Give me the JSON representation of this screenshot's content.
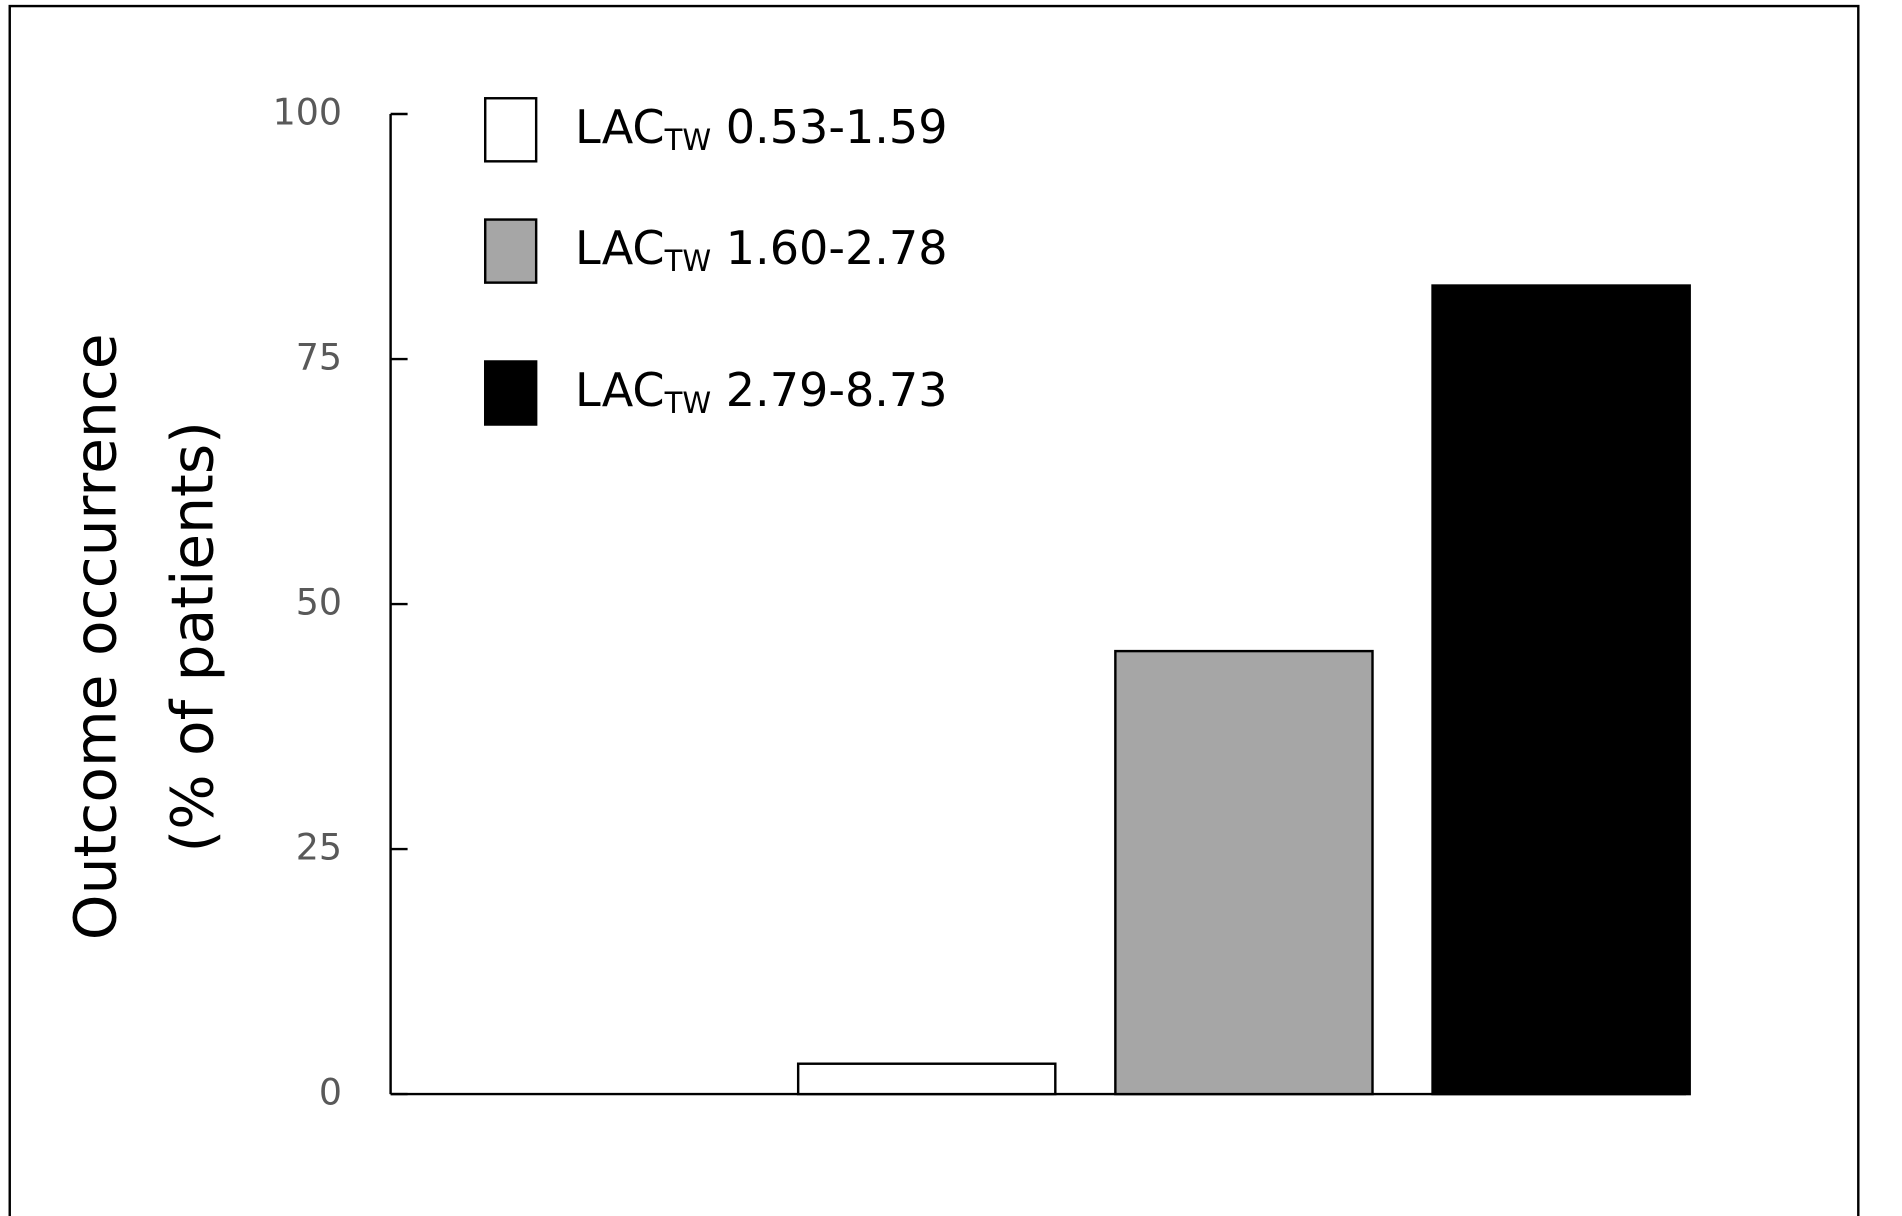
{
  "chart_data": {
    "type": "bar",
    "y_label_lines": [
      "Outcome occurrence",
      "(% of patients)"
    ],
    "categories": [
      null,
      null,
      null,
      null
    ],
    "series": [
      {
        "name": "LAC",
        "subscript": "TW",
        "range": "0.53-1.59",
        "color": "#ffffff",
        "values": [
          null,
          3.1,
          null,
          null
        ]
      },
      {
        "name": "LAC",
        "subscript": "TW",
        "range": "1.60-2.78",
        "color": "#a6a6a6",
        "values": [
          null,
          null,
          45.2,
          null
        ]
      },
      {
        "name": "LAC",
        "subscript": "TW",
        "range": "2.79-8.73",
        "color": "#000000",
        "values": [
          null,
          null,
          null,
          82.5
        ]
      }
    ],
    "ylim": [
      0,
      100
    ],
    "yticks": [
      0,
      25,
      50,
      75,
      100
    ],
    "grid": false,
    "legend": "upper left"
  }
}
